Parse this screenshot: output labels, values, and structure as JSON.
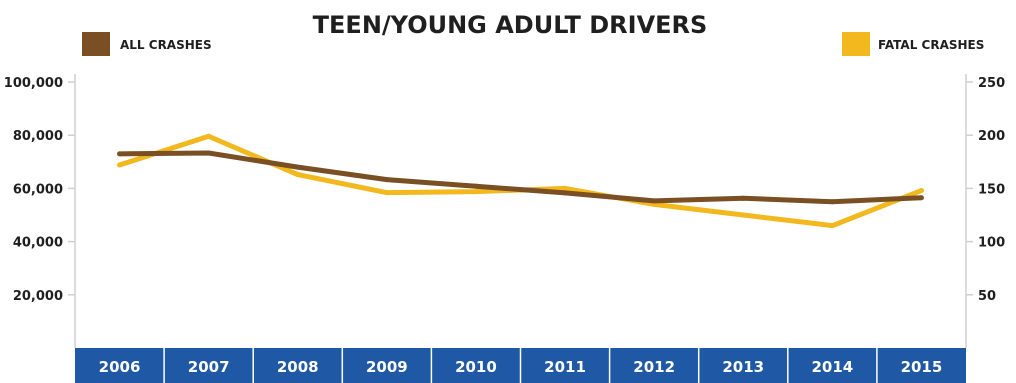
{
  "chart_data": {
    "type": "line",
    "title": "TEEN/YOUNG ADULT DRIVERS",
    "categories": [
      "2006",
      "2007",
      "2008",
      "2009",
      "2010",
      "2011",
      "2012",
      "2013",
      "2014",
      "2015"
    ],
    "series": [
      {
        "name": "ALL CRASHES",
        "axis": "left",
        "color": "#7a4f24",
        "values": [
          73000,
          73300,
          68000,
          63300,
          60800,
          58300,
          55300,
          56300,
          55000,
          56500
        ]
      },
      {
        "name": "FATAL CRASHES",
        "axis": "right",
        "color": "#f2b81e",
        "values": [
          172,
          199,
          163,
          146,
          147,
          150,
          135,
          125,
          115,
          148
        ]
      }
    ],
    "y_left": {
      "ylim": [
        0,
        100000
      ],
      "ticks": [
        20000,
        40000,
        60000,
        80000,
        100000
      ],
      "tick_labels": [
        "20,000",
        "40,000",
        "60,000",
        "80,000",
        "100,000"
      ]
    },
    "y_right": {
      "ylim": [
        0,
        250
      ],
      "ticks": [
        50,
        100,
        150,
        200,
        250
      ],
      "tick_labels": [
        "50",
        "100",
        "150",
        "200",
        "250"
      ]
    },
    "grid": false,
    "legend": [
      {
        "label": "ALL CRASHES",
        "color": "#7a4f24",
        "placement": "top-left"
      },
      {
        "label": "FATAL CRASHES",
        "color": "#f2b81e",
        "placement": "top-right"
      }
    ],
    "x_band_color": "#1f58a5"
  }
}
